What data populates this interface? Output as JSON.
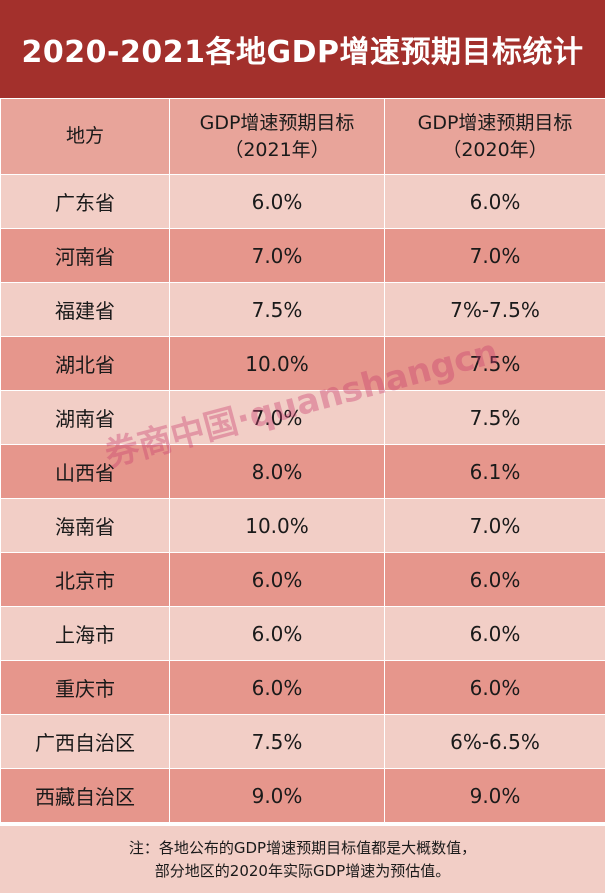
{
  "title": "2020-2021各地GDP增速预期目标统计",
  "table": {
    "headers": [
      {
        "line1": "地方",
        "line2": ""
      },
      {
        "line1": "GDP增速预期目标",
        "line2": "（2021年）"
      },
      {
        "line1": "GDP增速预期目标",
        "line2": "（2020年）"
      }
    ],
    "rows": [
      {
        "region": "广东省",
        "y2021": "6.0%",
        "y2020": "6.0%"
      },
      {
        "region": "河南省",
        "y2021": "7.0%",
        "y2020": "7.0%"
      },
      {
        "region": "福建省",
        "y2021": "7.5%",
        "y2020": "7%-7.5%"
      },
      {
        "region": "湖北省",
        "y2021": "10.0%",
        "y2020": "7.5%"
      },
      {
        "region": "湖南省",
        "y2021": "7.0%",
        "y2020": "7.5%"
      },
      {
        "region": "山西省",
        "y2021": "8.0%",
        "y2020": "6.1%"
      },
      {
        "region": "海南省",
        "y2021": "10.0%",
        "y2020": "7.0%"
      },
      {
        "region": "北京市",
        "y2021": "6.0%",
        "y2020": "6.0%"
      },
      {
        "region": "上海市",
        "y2021": "6.0%",
        "y2020": "6.0%"
      },
      {
        "region": "重庆市",
        "y2021": "6.0%",
        "y2020": "6.0%"
      },
      {
        "region": "广西自治区",
        "y2021": "7.5%",
        "y2020": "6%-6.5%"
      },
      {
        "region": "西藏自治区",
        "y2021": "9.0%",
        "y2020": "9.0%"
      }
    ]
  },
  "note": {
    "line1": "注：各地公布的GDP增速预期目标值都是大概数值，",
    "line2": "部分地区的2020年实际GDP增速为预估值。"
  },
  "watermark": "券商中国·quanshangcn",
  "colors": {
    "title_bg": "#a3302c",
    "header_bg": "#e8a49a",
    "row_light": "#f2cec6",
    "row_dark": "#e6968c"
  }
}
